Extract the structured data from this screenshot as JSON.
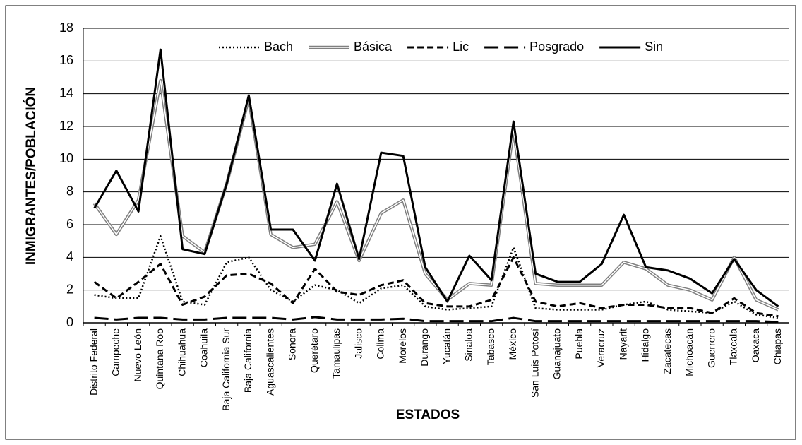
{
  "chart_data": {
    "type": "line",
    "ylabel": "INMIGRANTES/POBLACIÓN",
    "xlabel": "ESTADOS",
    "categories": [
      "Distrito Federal",
      "Campeche",
      "Nuevo León",
      "Quintana Roo",
      "Chihuahua",
      "Coahuila",
      "Baja California Sur",
      "Baja California",
      "Aguascalientes",
      "Sonora",
      "Querétaro",
      "Tamaulipas",
      "Jalisco",
      "Colima",
      "Morelos",
      "Durango",
      "Yucatán",
      "Sinaloa",
      "Tabasco",
      "México",
      "San Luis Potosí",
      "Guanajuato",
      "Puebla",
      "Veracruz",
      "Nayarit",
      "Hidalgo",
      "Zacatecas",
      "Michoacán",
      "Guerrero",
      "Tlaxcala",
      "Oaxaca",
      "Chiapas"
    ],
    "series": [
      {
        "name": "Bach",
        "color": "#000000",
        "dash": "dotted",
        "values": [
          1.7,
          1.5,
          1.5,
          5.3,
          1.3,
          1.1,
          3.7,
          4.0,
          2.0,
          1.3,
          2.3,
          2.0,
          1.2,
          2.1,
          2.3,
          1.0,
          0.8,
          0.9,
          1.0,
          4.6,
          0.9,
          0.8,
          0.8,
          0.8,
          1.1,
          1.3,
          0.8,
          0.7,
          0.6,
          1.3,
          0.5,
          0.3
        ]
      },
      {
        "name": "Básica",
        "color": "#808080",
        "dash": "double",
        "values": [
          7.3,
          5.4,
          7.5,
          14.8,
          5.3,
          4.3,
          8.5,
          13.7,
          5.4,
          4.6,
          4.8,
          7.4,
          3.8,
          6.7,
          7.5,
          3.0,
          1.4,
          2.4,
          2.3,
          11.8,
          2.4,
          2.3,
          2.3,
          2.3,
          3.7,
          3.3,
          2.3,
          2.0,
          1.4,
          4.0,
          1.4,
          0.8
        ]
      },
      {
        "name": "Lic",
        "color": "#000000",
        "dash": "dashed",
        "values": [
          2.5,
          1.5,
          2.5,
          3.6,
          1.1,
          1.6,
          2.9,
          3.0,
          2.4,
          1.2,
          3.3,
          1.9,
          1.7,
          2.3,
          2.6,
          1.2,
          1.0,
          1.0,
          1.4,
          4.0,
          1.3,
          1.0,
          1.2,
          0.9,
          1.1,
          1.1,
          0.9,
          0.9,
          0.6,
          1.5,
          0.6,
          0.4
        ]
      },
      {
        "name": "Posgrado",
        "color": "#000000",
        "dash": "longdash",
        "values": [
          0.3,
          0.2,
          0.3,
          0.3,
          0.2,
          0.2,
          0.3,
          0.3,
          0.3,
          0.2,
          0.35,
          0.2,
          0.2,
          0.2,
          0.25,
          0.1,
          0.1,
          0.1,
          0.1,
          0.3,
          0.1,
          0.1,
          0.1,
          0.1,
          0.1,
          0.1,
          0.1,
          0.1,
          0.1,
          0.1,
          0.1,
          0.05
        ]
      },
      {
        "name": "Sin",
        "color": "#000000",
        "dash": "solid",
        "values": [
          7.0,
          9.3,
          6.8,
          16.7,
          4.5,
          4.2,
          8.5,
          13.9,
          5.7,
          5.7,
          3.8,
          8.5,
          3.9,
          10.4,
          10.2,
          3.4,
          1.3,
          4.1,
          2.6,
          12.3,
          3.0,
          2.5,
          2.5,
          3.6,
          6.6,
          3.4,
          3.2,
          2.7,
          1.8,
          3.9,
          2.0,
          1.0
        ]
      }
    ],
    "ylim": [
      0,
      18
    ],
    "yticks": [
      0,
      2,
      4,
      6,
      8,
      10,
      12,
      14,
      16,
      18
    ],
    "grid": true,
    "legend": "top"
  }
}
